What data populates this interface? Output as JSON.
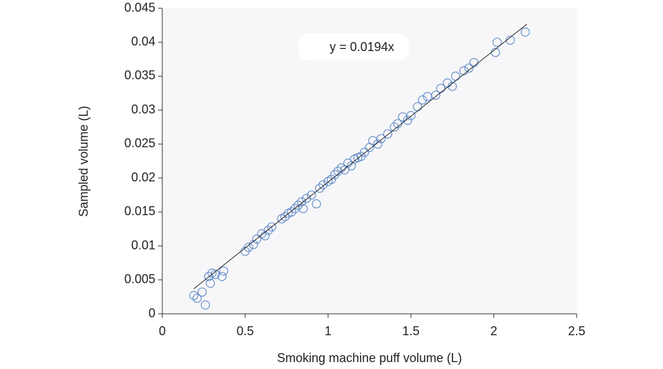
{
  "chart_data": {
    "type": "scatter",
    "xlabel": "Smoking machine puff volume (L)",
    "ylabel": "Sampled volume (L)",
    "annotation": "y = 0.0194x",
    "color": "#5b86c5",
    "xlim": [
      0,
      2.5
    ],
    "xticks": [
      0,
      0.5,
      1,
      1.5,
      2,
      2.5
    ],
    "ylim": [
      0,
      0.045
    ],
    "yticks": [
      0,
      0.005,
      0.01,
      0.015,
      0.02,
      0.025,
      0.03,
      0.035,
      0.04,
      0.045
    ],
    "trendline": {
      "slope": 0.0194,
      "x": [
        0.19,
        2.2
      ]
    },
    "x": [
      0.19,
      0.21,
      0.24,
      0.26,
      0.28,
      0.29,
      0.3,
      0.32,
      0.36,
      0.37,
      0.5,
      0.52,
      0.55,
      0.57,
      0.6,
      0.62,
      0.64,
      0.66,
      0.72,
      0.74,
      0.76,
      0.78,
      0.8,
      0.82,
      0.84,
      0.85,
      0.87,
      0.9,
      0.93,
      0.95,
      0.97,
      1.0,
      1.02,
      1.04,
      1.06,
      1.08,
      1.1,
      1.12,
      1.14,
      1.16,
      1.18,
      1.2,
      1.22,
      1.25,
      1.27,
      1.3,
      1.32,
      1.36,
      1.4,
      1.42,
      1.45,
      1.48,
      1.5,
      1.54,
      1.57,
      1.6,
      1.65,
      1.68,
      1.72,
      1.75,
      1.77,
      1.82,
      1.85,
      1.88,
      2.01,
      2.02,
      2.1,
      2.19
    ],
    "y": [
      0.0027,
      0.0023,
      0.0032,
      0.0013,
      0.0055,
      0.0045,
      0.006,
      0.0058,
      0.0055,
      0.0063,
      0.0092,
      0.0098,
      0.0102,
      0.011,
      0.0118,
      0.0115,
      0.0123,
      0.0128,
      0.014,
      0.0143,
      0.0148,
      0.015,
      0.0155,
      0.016,
      0.0165,
      0.0155,
      0.017,
      0.0175,
      0.0162,
      0.0185,
      0.019,
      0.0195,
      0.0198,
      0.0205,
      0.021,
      0.0215,
      0.0212,
      0.0222,
      0.0218,
      0.0228,
      0.023,
      0.0232,
      0.0238,
      0.0245,
      0.0255,
      0.025,
      0.0258,
      0.0265,
      0.0275,
      0.028,
      0.029,
      0.0285,
      0.0292,
      0.0305,
      0.0315,
      0.032,
      0.0322,
      0.0332,
      0.034,
      0.0335,
      0.035,
      0.0358,
      0.0362,
      0.037,
      0.0385,
      0.04,
      0.0403,
      0.0415
    ]
  }
}
